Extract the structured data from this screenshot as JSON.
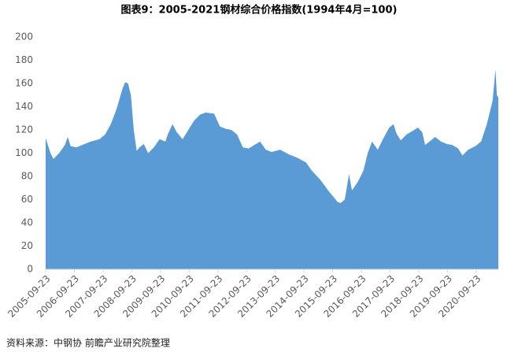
{
  "chart_data": {
    "type": "area",
    "title": "图表9：2005-2021钢材综合价格指数(1994年4月=100)",
    "source": "资料来源：中钢协 前瞻产业研究院整理",
    "color": "#5b9bd5",
    "x": [
      2005.73,
      2005.9,
      2006.0,
      2006.2,
      2006.4,
      2006.5,
      2006.6,
      2006.8,
      2007.0,
      2007.3,
      2007.6,
      2007.8,
      2008.0,
      2008.2,
      2008.4,
      2008.5,
      2008.6,
      2008.7,
      2008.8,
      2008.9,
      2009.0,
      2009.15,
      2009.3,
      2009.5,
      2009.7,
      2009.9,
      2010.0,
      2010.15,
      2010.3,
      2010.5,
      2010.7,
      2010.9,
      2011.1,
      2011.3,
      2011.6,
      2011.8,
      2012.0,
      2012.2,
      2012.4,
      2012.6,
      2012.8,
      2013.0,
      2013.2,
      2013.4,
      2013.6,
      2013.9,
      2014.2,
      2014.5,
      2014.8,
      2015.0,
      2015.3,
      2015.6,
      2015.9,
      2016.0,
      2016.15,
      2016.3,
      2016.4,
      2016.6,
      2016.8,
      2016.95,
      2017.1,
      2017.3,
      2017.5,
      2017.7,
      2017.85,
      2017.95,
      2018.1,
      2018.3,
      2018.5,
      2018.7,
      2018.85,
      2018.95,
      2019.1,
      2019.3,
      2019.5,
      2019.7,
      2019.9,
      2020.1,
      2020.25,
      2020.45,
      2020.7,
      2020.9,
      2021.1,
      2021.3,
      2021.4,
      2021.45,
      2021.5
    ],
    "values": [
      113,
      100,
      95,
      100,
      107,
      114,
      106,
      105,
      107,
      110,
      112,
      116,
      125,
      138,
      155,
      161,
      160,
      150,
      120,
      102,
      105,
      108,
      100,
      105,
      112,
      110,
      117,
      125,
      118,
      112,
      120,
      128,
      133,
      135,
      134,
      123,
      121,
      120,
      116,
      105,
      104,
      107,
      110,
      103,
      101,
      103,
      99,
      96,
      92,
      85,
      77,
      67,
      58,
      57,
      60,
      82,
      68,
      75,
      85,
      100,
      110,
      103,
      113,
      122,
      125,
      117,
      111,
      116,
      119,
      122,
      118,
      107,
      110,
      114,
      110,
      108,
      107,
      104,
      98,
      103,
      106,
      110,
      125,
      145,
      172,
      150,
      148
    ],
    "xlim": [
      2005.73,
      2021.5
    ],
    "xticks": [
      {
        "value": 2005.73,
        "label": "2005-09-23"
      },
      {
        "value": 2006.73,
        "label": "2006-09-23"
      },
      {
        "value": 2007.73,
        "label": "2007-09-23"
      },
      {
        "value": 2008.73,
        "label": "2008-09-23"
      },
      {
        "value": 2009.73,
        "label": "2009-09-23"
      },
      {
        "value": 2010.73,
        "label": "2010-09-23"
      },
      {
        "value": 2011.73,
        "label": "2011-09-23"
      },
      {
        "value": 2012.73,
        "label": "2012-09-23"
      },
      {
        "value": 2013.73,
        "label": "2013-09-23"
      },
      {
        "value": 2014.73,
        "label": "2014-09-23"
      },
      {
        "value": 2015.73,
        "label": "2015-09-23"
      },
      {
        "value": 2016.73,
        "label": "2016-09-23"
      },
      {
        "value": 2017.73,
        "label": "2017-09-23"
      },
      {
        "value": 2018.73,
        "label": "2018-09-23"
      },
      {
        "value": 2019.73,
        "label": "2019-09-23"
      },
      {
        "value": 2020.73,
        "label": "2020-09-23"
      }
    ],
    "ylim": [
      0,
      200
    ],
    "yticks": [
      0,
      20,
      40,
      60,
      80,
      100,
      120,
      140,
      160,
      180,
      200
    ]
  }
}
